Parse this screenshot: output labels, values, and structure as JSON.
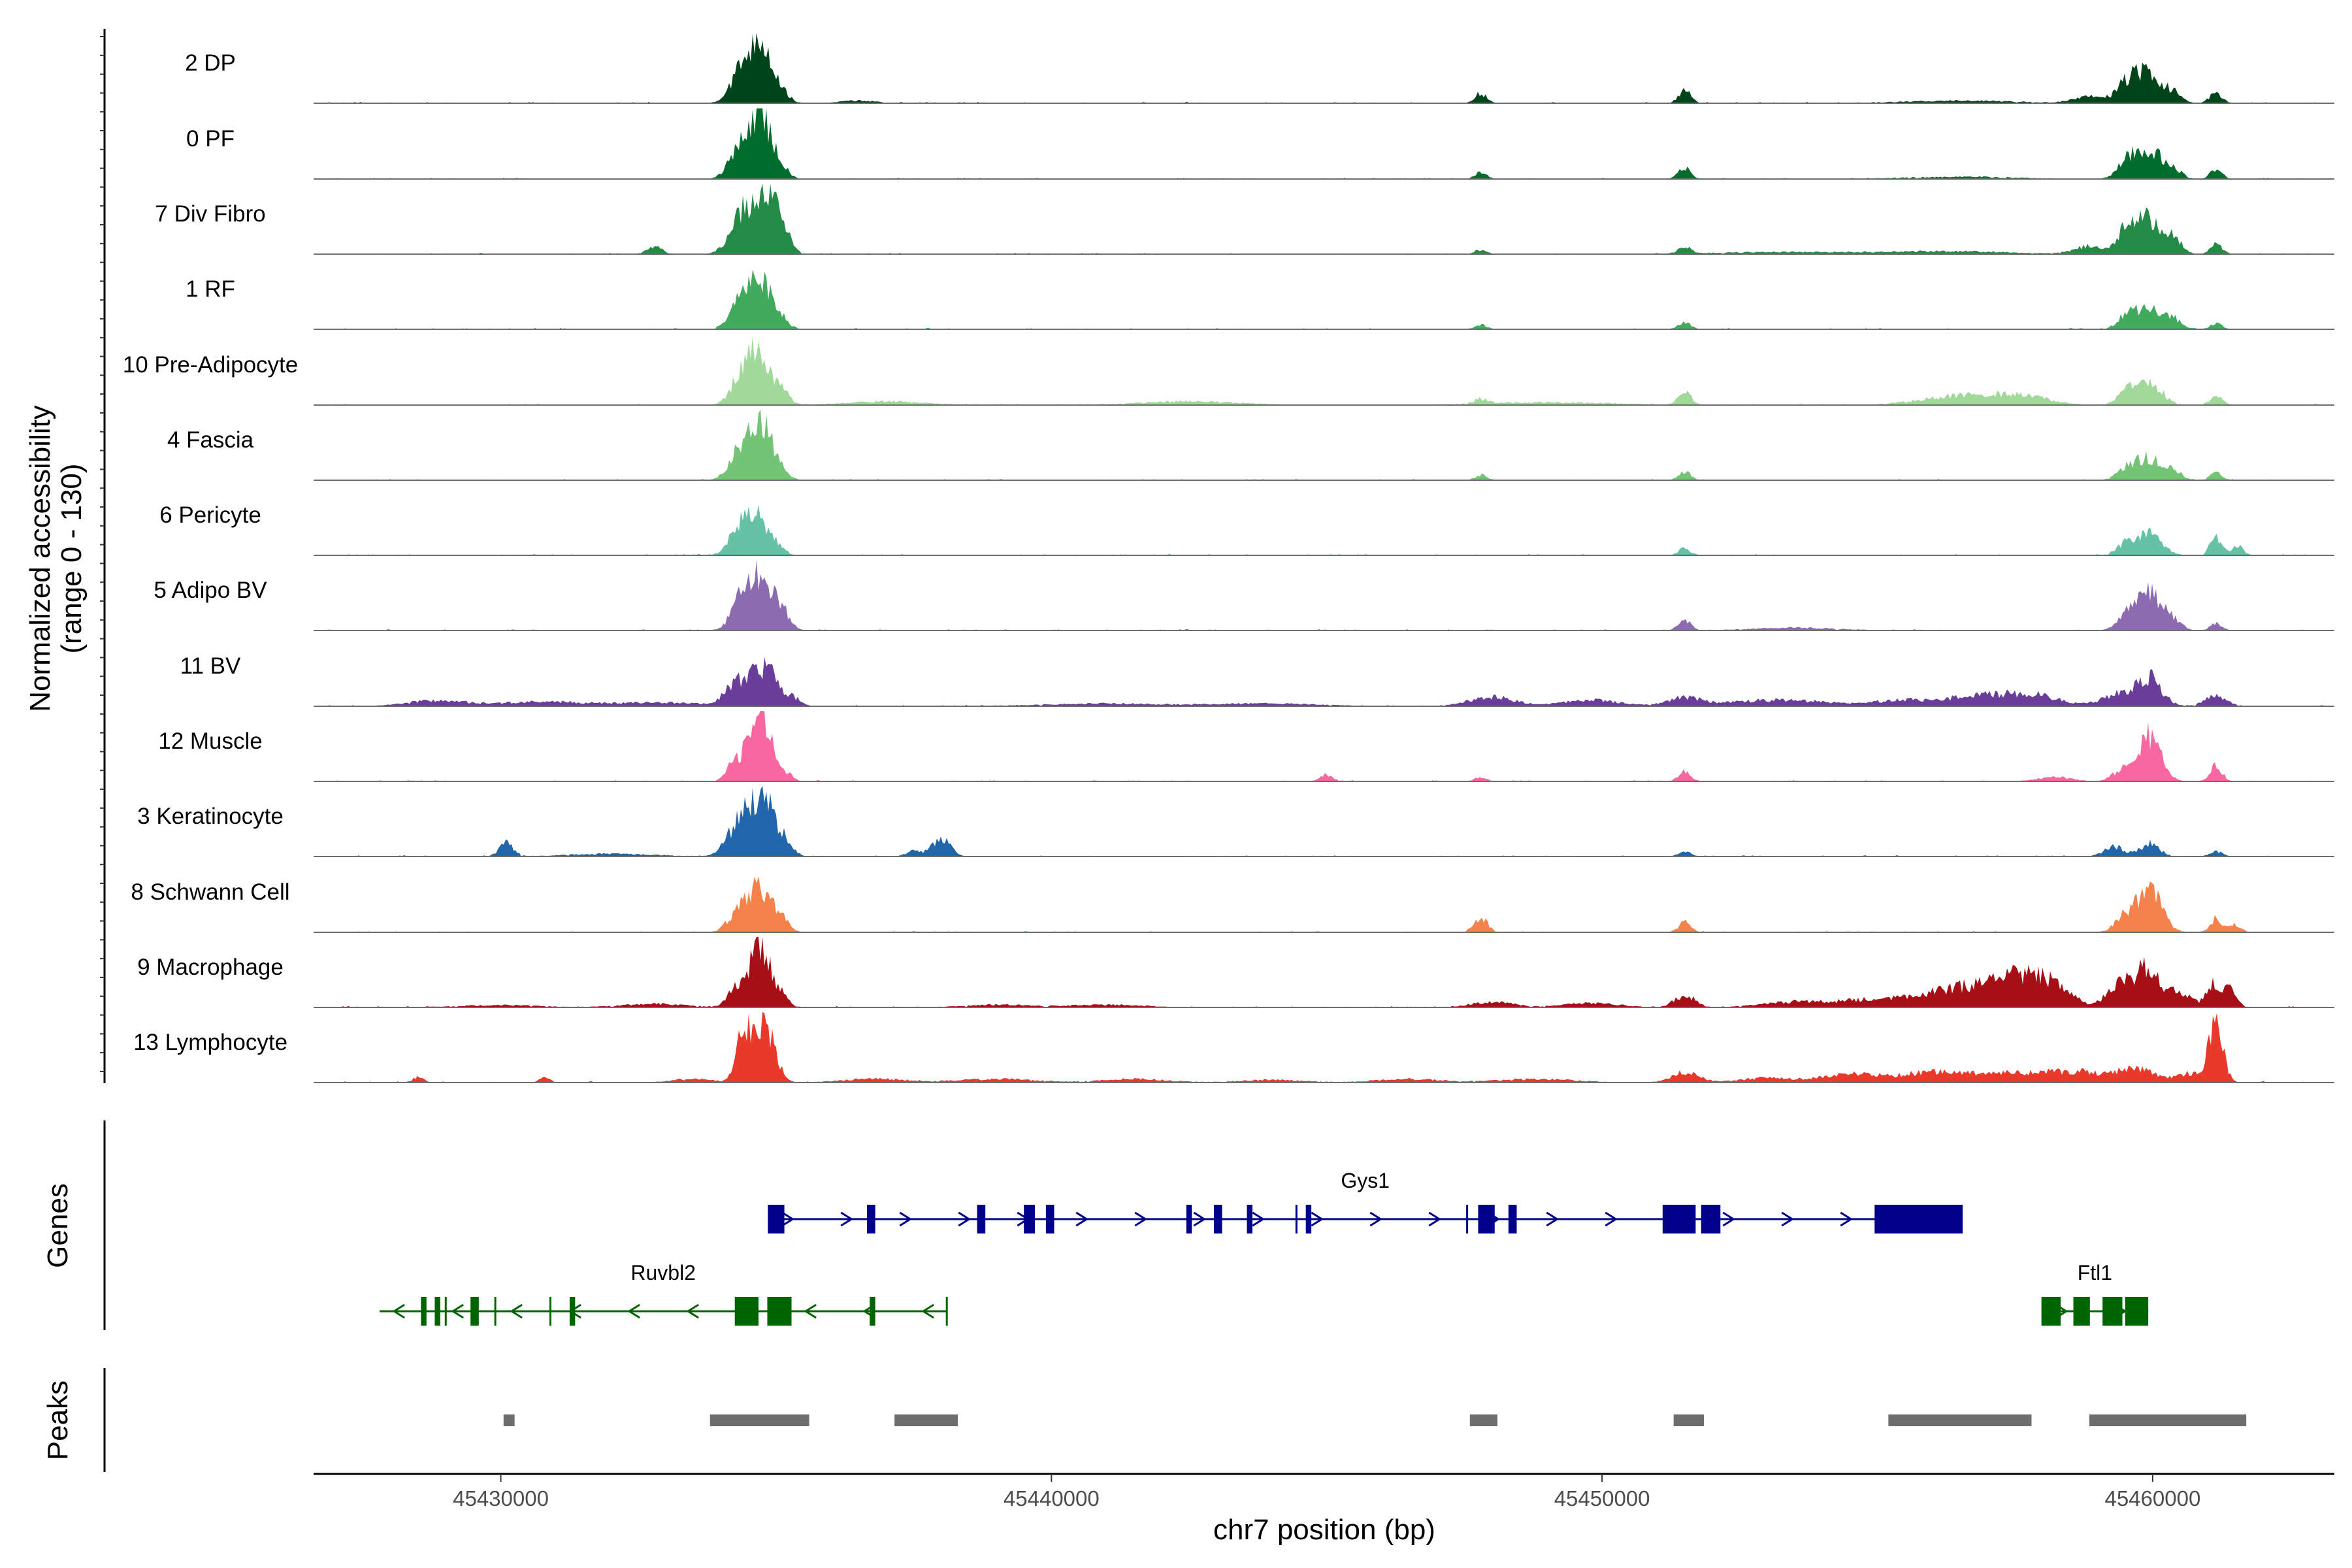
{
  "chart_data": {
    "type": "area",
    "title": "",
    "chromosome": "chr7",
    "xlabel": "chr7 position (bp)",
    "ylabel_line1": "Normalized accessibility",
    "ylabel_line2": "(range 0 - 130)",
    "y_range": [
      0,
      130
    ],
    "xlim": [
      45426600,
      45463300
    ],
    "x_ticks": [
      45430000,
      45440000,
      45450000,
      45460000
    ],
    "x_tick_labels": [
      "45430000",
      "45440000",
      "45450000",
      "45460000"
    ],
    "panel_titles": {
      "genes": "Genes",
      "peaks": "Peaks"
    },
    "series": [
      {
        "name": "2 DP",
        "color": "#00441b",
        "peaks": [
          [
            45434600,
            80,
            260
          ],
          [
            45434750,
            75,
            180
          ],
          [
            45434300,
            30,
            180
          ],
          [
            45435100,
            18,
            140
          ],
          [
            45436500,
            6,
            300
          ],
          [
            45447800,
            22,
            110
          ],
          [
            45451500,
            28,
            110
          ],
          [
            45459950,
            65,
            220
          ],
          [
            45459550,
            45,
            180
          ],
          [
            45460400,
            20,
            140
          ],
          [
            45461150,
            25,
            110
          ],
          [
            45456500,
            6,
            1000
          ],
          [
            45458900,
            15,
            300
          ]
        ]
      },
      {
        "name": "0 PF",
        "color": "#006d2c",
        "peaks": [
          [
            45434600,
            80,
            260
          ],
          [
            45434750,
            70,
            180
          ],
          [
            45434300,
            32,
            180
          ],
          [
            45435100,
            18,
            140
          ],
          [
            45447800,
            14,
            110
          ],
          [
            45451500,
            26,
            110
          ],
          [
            45459950,
            65,
            220
          ],
          [
            45459550,
            40,
            180
          ],
          [
            45460400,
            18,
            140
          ],
          [
            45461150,
            22,
            110
          ],
          [
            45456500,
            5,
            1000
          ]
        ]
      },
      {
        "name": "7 Div Fibro",
        "color": "#238b45",
        "peaks": [
          [
            45434600,
            90,
            280
          ],
          [
            45434900,
            85,
            200
          ],
          [
            45434300,
            35,
            180
          ],
          [
            45435100,
            25,
            140
          ],
          [
            45432800,
            15,
            140
          ],
          [
            45447800,
            10,
            110
          ],
          [
            45451500,
            16,
            110
          ],
          [
            45459950,
            75,
            220
          ],
          [
            45459550,
            52,
            180
          ],
          [
            45460400,
            30,
            140
          ],
          [
            45461150,
            22,
            110
          ],
          [
            45453500,
            5,
            1500
          ],
          [
            45456500,
            6,
            1000
          ],
          [
            45458900,
            18,
            300
          ]
        ]
      },
      {
        "name": "1 RF",
        "color": "#41ab5d",
        "peaks": [
          [
            45434600,
            70,
            260
          ],
          [
            45434750,
            55,
            180
          ],
          [
            45434300,
            25,
            180
          ],
          [
            45435100,
            16,
            140
          ],
          [
            45447800,
            10,
            110
          ],
          [
            45451500,
            16,
            110
          ],
          [
            45459950,
            45,
            220
          ],
          [
            45459550,
            30,
            180
          ],
          [
            45460400,
            20,
            140
          ],
          [
            45461150,
            12,
            110
          ]
        ]
      },
      {
        "name": "10 Pre-Adipocyte",
        "color": "#a1d99b",
        "peaks": [
          [
            45434700,
            95,
            230
          ],
          [
            45434400,
            60,
            200
          ],
          [
            45435100,
            22,
            140
          ],
          [
            45437000,
            8,
            700
          ],
          [
            45442500,
            8,
            900
          ],
          [
            45447800,
            12,
            110
          ],
          [
            45451500,
            32,
            110
          ],
          [
            45456500,
            20,
            700
          ],
          [
            45457600,
            18,
            500
          ],
          [
            45459950,
            50,
            220
          ],
          [
            45459550,
            28,
            180
          ],
          [
            45461150,
            22,
            110
          ],
          [
            45449000,
            6,
            1200
          ]
        ]
      },
      {
        "name": "4 Fascia",
        "color": "#74c476",
        "peaks": [
          [
            45434600,
            80,
            260
          ],
          [
            45434750,
            60,
            180
          ],
          [
            45434300,
            28,
            180
          ],
          [
            45435100,
            16,
            140
          ],
          [
            45447800,
            12,
            110
          ],
          [
            45451500,
            20,
            110
          ],
          [
            45459950,
            48,
            220
          ],
          [
            45459550,
            26,
            180
          ],
          [
            45460400,
            18,
            140
          ],
          [
            45461150,
            18,
            110
          ]
        ]
      },
      {
        "name": "6 Pericyte",
        "color": "#66c2a4",
        "peaks": [
          [
            45434600,
            75,
            230
          ],
          [
            45434300,
            35,
            180
          ],
          [
            45434900,
            25,
            180
          ],
          [
            45451500,
            15,
            110
          ],
          [
            45459950,
            45,
            220
          ],
          [
            45459550,
            28,
            180
          ],
          [
            45461150,
            38,
            110
          ],
          [
            45461550,
            20,
            100
          ]
        ]
      },
      {
        "name": "5 Adipo BV",
        "color": "#8c6bb1",
        "peaks": [
          [
            45434700,
            115,
            260
          ],
          [
            45434400,
            45,
            200
          ],
          [
            45435100,
            28,
            140
          ],
          [
            45451500,
            25,
            110
          ],
          [
            45459950,
            85,
            220
          ],
          [
            45459550,
            30,
            180
          ],
          [
            45460400,
            18,
            140
          ],
          [
            45461150,
            15,
            110
          ],
          [
            45453500,
            6,
            800
          ]
        ]
      },
      {
        "name": "11 BV",
        "color": "#6a3d9a",
        "peaks": [
          [
            45434600,
            60,
            260
          ],
          [
            45434900,
            48,
            180
          ],
          [
            45434200,
            28,
            180
          ],
          [
            45435300,
            18,
            140
          ],
          [
            45428800,
            12,
            500
          ],
          [
            45430800,
            10,
            900
          ],
          [
            45433000,
            8,
            700
          ],
          [
            45448000,
            22,
            400
          ],
          [
            45449800,
            14,
            500
          ],
          [
            45451500,
            18,
            300
          ],
          [
            45453200,
            14,
            900
          ],
          [
            45455500,
            14,
            500
          ],
          [
            45456800,
            22,
            500
          ],
          [
            45457800,
            25,
            500
          ],
          [
            45459950,
            60,
            220
          ],
          [
            45459400,
            28,
            300
          ],
          [
            45461150,
            22,
            200
          ],
          [
            45441000,
            6,
            1200
          ],
          [
            45444000,
            6,
            900
          ]
        ]
      },
      {
        "name": "12 Muscle",
        "color": "#f768a1",
        "peaks": [
          [
            45434600,
            115,
            180
          ],
          [
            45434850,
            70,
            140
          ],
          [
            45434200,
            35,
            120
          ],
          [
            45435200,
            20,
            100
          ],
          [
            45445000,
            15,
            110
          ],
          [
            45447800,
            10,
            100
          ],
          [
            45451500,
            22,
            110
          ],
          [
            45459950,
            100,
            200
          ],
          [
            45459450,
            25,
            180
          ],
          [
            45461150,
            35,
            110
          ],
          [
            45458200,
            10,
            300
          ]
        ]
      },
      {
        "name": "3 Keratinocyte",
        "color": "#2166ac",
        "peaks": [
          [
            45434600,
            105,
            260
          ],
          [
            45434900,
            50,
            180
          ],
          [
            45434200,
            30,
            180
          ],
          [
            45435200,
            18,
            140
          ],
          [
            45430100,
            28,
            130
          ],
          [
            45438000,
            42,
            160
          ],
          [
            45437500,
            12,
            140
          ],
          [
            45432000,
            6,
            800
          ],
          [
            45451500,
            12,
            110
          ],
          [
            45459950,
            28,
            180
          ],
          [
            45459300,
            22,
            180
          ],
          [
            45461150,
            12,
            110
          ]
        ]
      },
      {
        "name": "8 Schwann Cell",
        "color": "#f4824a",
        "peaks": [
          [
            45434700,
            100,
            220
          ],
          [
            45434300,
            40,
            180
          ],
          [
            45435100,
            22,
            140
          ],
          [
            45447800,
            30,
            130
          ],
          [
            45451500,
            22,
            110
          ],
          [
            45459950,
            95,
            220
          ],
          [
            45459500,
            32,
            180
          ],
          [
            45461150,
            30,
            110
          ],
          [
            45461500,
            18,
            100
          ]
        ]
      },
      {
        "name": "9 Macrophage",
        "color": "#a50f15",
        "peaks": [
          [
            45434700,
            130,
            140
          ],
          [
            45434350,
            55,
            180
          ],
          [
            45435000,
            45,
            160
          ],
          [
            45432800,
            8,
            600
          ],
          [
            45430000,
            5,
            800
          ],
          [
            45439000,
            6,
            600
          ],
          [
            45441000,
            6,
            700
          ],
          [
            45448000,
            12,
            400
          ],
          [
            45449800,
            10,
            500
          ],
          [
            45451500,
            28,
            180
          ],
          [
            45453500,
            12,
            600
          ],
          [
            45455000,
            18,
            600
          ],
          [
            45456300,
            35,
            500
          ],
          [
            45457200,
            45,
            450
          ],
          [
            45457800,
            50,
            350
          ],
          [
            45458300,
            32,
            300
          ],
          [
            45459950,
            85,
            200
          ],
          [
            45459450,
            55,
            250
          ],
          [
            45460500,
            32,
            200
          ],
          [
            45461150,
            55,
            150
          ],
          [
            45461450,
            30,
            100
          ]
        ]
      },
      {
        "name": "13 Lymphocyte",
        "color": "#e8392b",
        "peaks": [
          [
            45434400,
            125,
            120
          ],
          [
            45434750,
            130,
            150
          ],
          [
            45435000,
            30,
            140
          ],
          [
            45428500,
            12,
            100
          ],
          [
            45430800,
            10,
            100
          ],
          [
            45433500,
            8,
            400
          ],
          [
            45436800,
            8,
            600
          ],
          [
            45439000,
            8,
            700
          ],
          [
            45441500,
            8,
            600
          ],
          [
            45444000,
            6,
            600
          ],
          [
            45446500,
            8,
            600
          ],
          [
            45448800,
            8,
            700
          ],
          [
            45451500,
            22,
            250
          ],
          [
            45453000,
            10,
            500
          ],
          [
            45454500,
            18,
            500
          ],
          [
            45456000,
            22,
            600
          ],
          [
            45457300,
            20,
            500
          ],
          [
            45458500,
            25,
            500
          ],
          [
            45459700,
            28,
            400
          ],
          [
            45461150,
            130,
            130
          ],
          [
            45460700,
            20,
            200
          ]
        ]
      }
    ],
    "genes": [
      {
        "name": "Gys1",
        "strand": "+",
        "color": "#00008b",
        "start": 45434850,
        "end": 45456550,
        "exons": [
          [
            45434850,
            45435150
          ],
          [
            45436650,
            45436800
          ],
          [
            45438650,
            45438800
          ],
          [
            45439500,
            45439700
          ],
          [
            45439900,
            45440050
          ],
          [
            45442450,
            45442550
          ],
          [
            45442950,
            45443100
          ],
          [
            45443550,
            45443650
          ],
          [
            45444620,
            45444720
          ],
          [
            45447750,
            45448050
          ],
          [
            45448300,
            45448450
          ],
          [
            45451100,
            45451700
          ],
          [
            45451800,
            45452150
          ],
          [
            45454950,
            45456550
          ]
        ],
        "thin_marks": [
          45444450,
          45447550
        ]
      },
      {
        "name": "Ruvbl2",
        "strand": "-",
        "color": "#006400",
        "start": 45427800,
        "end": 45438100,
        "exons": [
          [
            45428550,
            45428650
          ],
          [
            45428800,
            45428900
          ],
          [
            45429450,
            45429600
          ],
          [
            45431250,
            45431350
          ],
          [
            45434250,
            45434680
          ],
          [
            45434840,
            45435280
          ],
          [
            45436700,
            45436800
          ]
        ],
        "thin_marks": [
          45429000,
          45429900,
          45430900,
          45438100
        ]
      },
      {
        "name": "Ftl1",
        "strand": "+",
        "color": "#006400",
        "start": 45457980,
        "end": 45459920,
        "exons": [
          [
            45457980,
            45458330
          ],
          [
            45458560,
            45458860
          ],
          [
            45459090,
            45459450
          ],
          [
            45459500,
            45459920
          ]
        ],
        "thin_marks": []
      }
    ],
    "peaks": [
      [
        45430050,
        45430250
      ],
      [
        45433800,
        45435600
      ],
      [
        45437150,
        45438300
      ],
      [
        45447600,
        45448100
      ],
      [
        45451300,
        45451850
      ],
      [
        45455200,
        45457800
      ],
      [
        45458850,
        45461700
      ]
    ]
  }
}
